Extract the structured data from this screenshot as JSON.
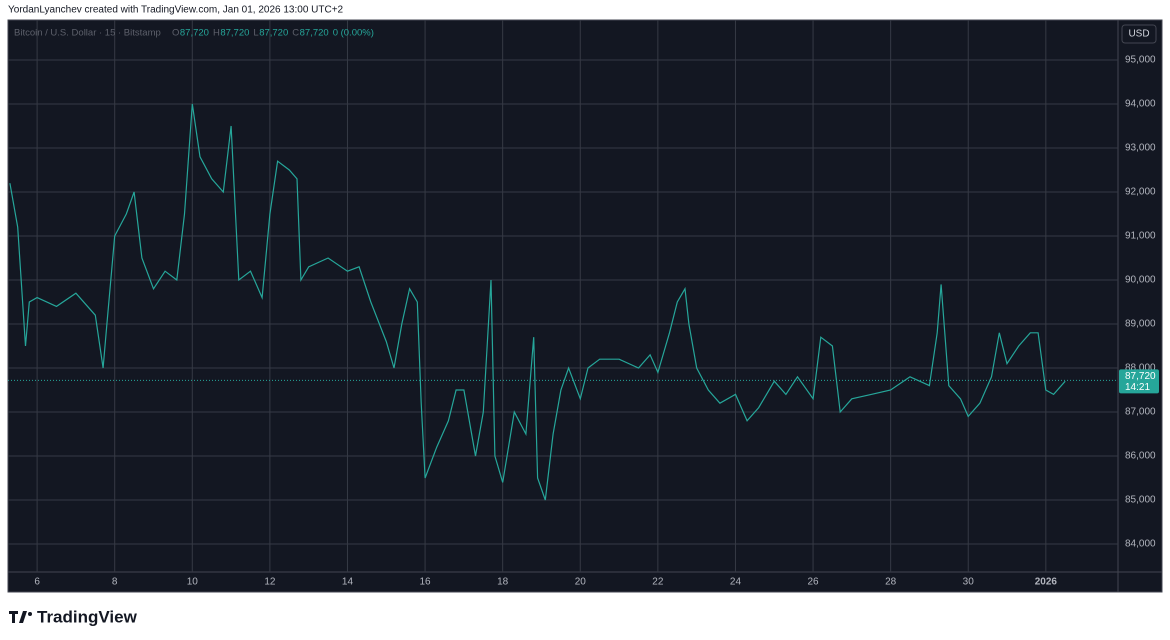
{
  "header": "YordanLyanchev created with TradingView.com, Jan 01, 2026 13:00 UTC+2",
  "footer": "TradingView",
  "chart_data": {
    "type": "line",
    "symbol": "Bitcoin / U.S. Dollar · 15 · Bitstamp",
    "ohlc": [
      {
        "key": "O",
        "value": "87,720"
      },
      {
        "key": "H",
        "value": "87,720"
      },
      {
        "key": "L",
        "value": "87,720"
      },
      {
        "key": "C",
        "value": "87,720"
      }
    ],
    "change": "0 (0.00%)",
    "currency": "USD",
    "last_price": {
      "value": 87720,
      "label": "87,720"
    },
    "countdown": "14:21",
    "color": "#26a69a",
    "grid": true,
    "x": [
      5.3,
      5.5,
      5.7,
      5.8,
      6.0,
      6.5,
      7.0,
      7.5,
      7.7,
      7.8,
      8.0,
      8.3,
      8.5,
      8.7,
      9.0,
      9.3,
      9.6,
      9.8,
      10.0,
      10.2,
      10.5,
      10.8,
      11.0,
      11.2,
      11.5,
      11.8,
      12.0,
      12.2,
      12.5,
      12.7,
      12.8,
      13.0,
      13.5,
      14.0,
      14.3,
      14.6,
      15.0,
      15.2,
      15.4,
      15.6,
      15.8,
      15.9,
      16.0,
      16.3,
      16.6,
      16.8,
      17.0,
      17.3,
      17.5,
      17.7,
      17.8,
      18.0,
      18.3,
      18.6,
      18.8,
      18.9,
      19.1,
      19.3,
      19.5,
      19.7,
      20.0,
      20.2,
      20.5,
      21.0,
      21.5,
      21.8,
      22.0,
      22.3,
      22.5,
      22.7,
      22.8,
      23.0,
      23.3,
      23.6,
      24.0,
      24.3,
      24.6,
      25.0,
      25.3,
      25.6,
      26.0,
      26.2,
      26.5,
      26.7,
      27.0,
      27.5,
      28.0,
      28.5,
      29.0,
      29.2,
      29.3,
      29.5,
      29.8,
      30.0,
      30.3,
      30.6,
      30.8,
      31.0,
      31.3,
      31.6,
      31.8,
      32.0,
      32.2,
      32.5
    ],
    "values": [
      92200,
      91200,
      88500,
      89500,
      89600,
      89400,
      89700,
      89200,
      88000,
      89000,
      91000,
      91500,
      92000,
      90500,
      89800,
      90200,
      90000,
      91500,
      94000,
      92800,
      92300,
      92000,
      93500,
      90000,
      90200,
      89600,
      91500,
      92700,
      92500,
      92300,
      90000,
      90300,
      90500,
      90200,
      90300,
      89500,
      88600,
      88000,
      89000,
      89800,
      89500,
      87200,
      85500,
      86200,
      86800,
      87500,
      87500,
      86000,
      87000,
      90000,
      86000,
      85400,
      87000,
      86500,
      88700,
      85500,
      85000,
      86500,
      87500,
      88000,
      87300,
      88000,
      88200,
      88200,
      88000,
      88300,
      87900,
      88800,
      89500,
      89800,
      89000,
      88000,
      87500,
      87200,
      87400,
      86800,
      87100,
      87700,
      87400,
      87800,
      87300,
      88700,
      88500,
      87000,
      87300,
      87400,
      87500,
      87800,
      87600,
      88800,
      89900,
      87600,
      87300,
      86900,
      87200,
      87800,
      88800,
      88100,
      88500,
      88800,
      88800,
      87500,
      87400,
      87700
    ],
    "xlim": [
      5.25,
      33.86
    ],
    "xticks": [
      6,
      8,
      10,
      12,
      14,
      16,
      18,
      20,
      22,
      24,
      26,
      28,
      30,
      {
        "value": 32,
        "label": "2026"
      }
    ],
    "ylim": [
      83364,
      95909
    ],
    "yticks": [
      {
        "value": 84000,
        "label": "84,000"
      },
      {
        "value": 85000,
        "label": "85,000"
      },
      {
        "value": 86000,
        "label": "86,000"
      },
      {
        "value": 87000,
        "label": "87,000"
      },
      {
        "value": 88000,
        "label": "88,000"
      },
      {
        "value": 89000,
        "label": "89,000"
      },
      {
        "value": 90000,
        "label": "90,000"
      },
      {
        "value": 91000,
        "label": "91,000"
      },
      {
        "value": 92000,
        "label": "92,000"
      },
      {
        "value": 93000,
        "label": "93,000"
      },
      {
        "value": 94000,
        "label": "94,000"
      },
      {
        "value": 95000,
        "label": "95,000"
      }
    ]
  }
}
